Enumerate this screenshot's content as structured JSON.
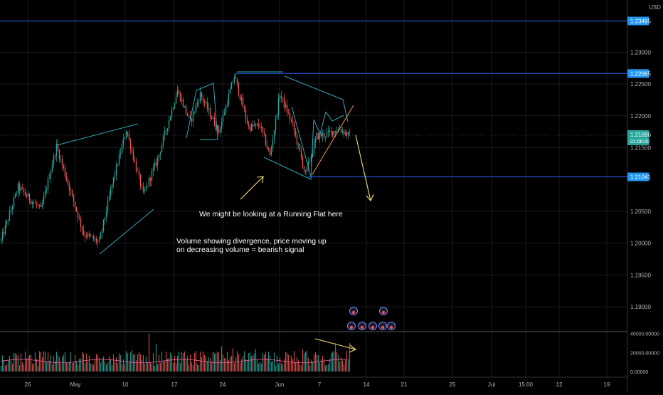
{
  "currency": "USD",
  "colors": {
    "background": "#000000",
    "grid": "#1a1a1a",
    "up": "#26a69a",
    "down": "#ef5350",
    "level_line": "#2962ff",
    "level_label": "#2196f3",
    "pattern_line": "#2fa8b8",
    "arrow": "#f5e06a",
    "wedge_line": "#f39c4b",
    "current_price": "#26a69a",
    "axis_text": "#b2b5be"
  },
  "annotations": {
    "running_flat": "We might be looking at a Running Flat here",
    "volume_line1": "Volume showing divergence, price moving up",
    "volume_line2": "on decreasing volume = bearish signal"
  },
  "chart_data": [
    {
      "type": "candlestick",
      "title": "",
      "ylim": [
        1.1862,
        1.2382
      ],
      "y_ticks": [
        "1.23000",
        "1.22500",
        "1.22000",
        "1.21500",
        "1.20500",
        "1.20000",
        "1.19500",
        "1.19000"
      ],
      "x_ticks": [
        "26",
        "May",
        "10",
        "17",
        "24",
        "Jun",
        "7",
        "14",
        "21",
        "25",
        "Jul",
        "15:00",
        "12",
        "19"
      ],
      "horizontal_levels": [
        {
          "value": 1.2349,
          "label": "1.23495"
        },
        {
          "value": 1.22665,
          "label": "1.22665"
        },
        {
          "value": 1.21041,
          "label": "1.21041"
        }
      ],
      "current_price": {
        "value": 1.21696,
        "label": "1.21696",
        "countdown": "01:06:00"
      },
      "grid": true,
      "path": [
        {
          "i": 0,
          "price": 1.2004
        },
        {
          "i": 12,
          "price": 1.2088
        },
        {
          "i": 28,
          "price": 1.2052
        },
        {
          "i": 39,
          "price": 1.2152
        },
        {
          "i": 58,
          "price": 1.2015
        },
        {
          "i": 69,
          "price": 1.2001
        },
        {
          "i": 78,
          "price": 1.2092
        },
        {
          "i": 88,
          "price": 1.2178
        },
        {
          "i": 100,
          "price": 1.2076
        },
        {
          "i": 110,
          "price": 1.2132
        },
        {
          "i": 124,
          "price": 1.224
        },
        {
          "i": 133,
          "price": 1.219
        },
        {
          "i": 140,
          "price": 1.2234
        },
        {
          "i": 153,
          "price": 1.2175
        },
        {
          "i": 164,
          "price": 1.2263
        },
        {
          "i": 174,
          "price": 1.2182
        },
        {
          "i": 182,
          "price": 1.2185
        },
        {
          "i": 189,
          "price": 1.2137
        },
        {
          "i": 196,
          "price": 1.2235
        },
        {
          "i": 205,
          "price": 1.2185
        },
        {
          "i": 214,
          "price": 1.2108
        },
        {
          "i": 222,
          "price": 1.2168
        },
        {
          "i": 230,
          "price": 1.2172
        },
        {
          "i": 238,
          "price": 1.218
        },
        {
          "i": 245,
          "price": 1.2168
        }
      ]
    },
    {
      "type": "bar",
      "title": "",
      "ylim": [
        -6000,
        42000
      ],
      "y_ticks": [
        "40000.00000",
        "20000.00000",
        "0.00000"
      ],
      "description_values": "volume per candle",
      "seed": 7
    }
  ]
}
